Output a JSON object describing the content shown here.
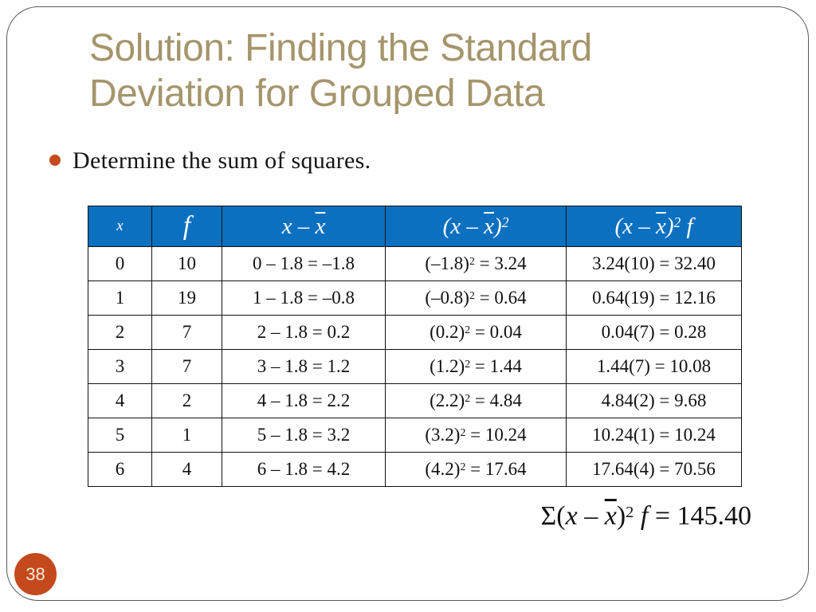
{
  "slide": {
    "title_line1": "Solution: Finding the Standard",
    "title_line2": "Deviation for Grouped Data",
    "bullet_text": "Determine the sum of squares.",
    "page_number": "38"
  },
  "colors": {
    "title_tan": "#a5956b",
    "header_blue": "#0b70c0",
    "accent_orange": "#c4491d",
    "grid_line": "#111111",
    "border_gray": "#58595b"
  },
  "table": {
    "headers": [
      [
        {
          "t": "x"
        }
      ],
      [
        {
          "t": "f"
        }
      ],
      [
        {
          "t": "x – "
        },
        {
          "t": "x",
          "bar": 1
        }
      ],
      [
        {
          "t": "(x – "
        },
        {
          "t": "x",
          "bar": 1
        },
        {
          "t": ")"
        },
        {
          "t": "2",
          "sup": 1
        }
      ],
      [
        {
          "t": "(x – "
        },
        {
          "t": "x",
          "bar": 1
        },
        {
          "t": ")"
        },
        {
          "t": "2",
          "sup": 1
        },
        {
          "t": " f"
        }
      ]
    ],
    "rows": [
      [
        "0",
        "10",
        "0 – 1.8 = –1.8",
        [
          {
            "t": "(–1.8)"
          },
          {
            "t": "2",
            "sup": 1
          },
          {
            "t": " = 3.24"
          }
        ],
        "3.24(10) = 32.40"
      ],
      [
        "1",
        "19",
        "1 – 1.8 = –0.8",
        [
          {
            "t": "(–0.8)"
          },
          {
            "t": "2",
            "sup": 1
          },
          {
            "t": " = 0.64"
          }
        ],
        "0.64(19) = 12.16"
      ],
      [
        "2",
        "7",
        "2 – 1.8 = 0.2",
        [
          {
            "t": "(0.2)"
          },
          {
            "t": "2",
            "sup": 1
          },
          {
            "t": " = 0.04"
          }
        ],
        "0.04(7) = 0.28"
      ],
      [
        "3",
        "7",
        "3 – 1.8 = 1.2",
        [
          {
            "t": "(1.2)"
          },
          {
            "t": "2",
            "sup": 1
          },
          {
            "t": " = 1.44"
          }
        ],
        "1.44(7) = 10.08"
      ],
      [
        "4",
        "2",
        "4 – 1.8 = 2.2",
        [
          {
            "t": "(2.2)"
          },
          {
            "t": "2",
            "sup": 1
          },
          {
            "t": " = 4.84"
          }
        ],
        "4.84(2) = 9.68"
      ],
      [
        "5",
        "1",
        "5 – 1.8 = 3.2",
        [
          {
            "t": "(3.2)"
          },
          {
            "t": "2",
            "sup": 1
          },
          {
            "t": " = 10.24"
          }
        ],
        "10.24(1) = 10.24"
      ],
      [
        "6",
        "4",
        "6 – 1.8 = 4.2",
        [
          {
            "t": "(4.2)"
          },
          {
            "t": "2",
            "sup": 1
          },
          {
            "t": " = 17.64"
          }
        ],
        "17.64(4) = 70.56"
      ]
    ]
  },
  "summary": {
    "segments": [
      {
        "t": "Σ(",
        "up": 1
      },
      {
        "t": "x – "
      },
      {
        "t": "x",
        "bar": 1
      },
      {
        "t": ")",
        "up": 1
      },
      {
        "t": "2",
        "sup": 1,
        "up": 1
      },
      {
        "t": " f"
      },
      {
        "t": " = 145.40",
        "up": 1
      }
    ]
  }
}
